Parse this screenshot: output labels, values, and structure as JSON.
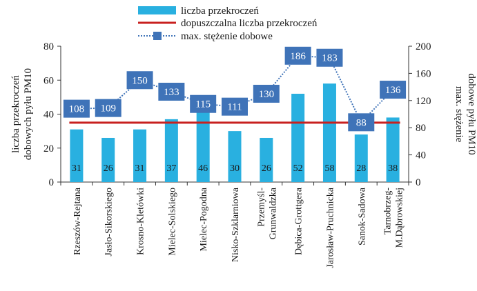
{
  "chart_data": {
    "type": "bar+line",
    "categories": [
      "Rzeszów-Rejtana",
      "Jasło-Sikorskiego",
      "Krosno-Kletówki",
      "Mielec-Solskiego",
      "Mielec-Pogodna",
      "Nisko-Szklarniowa",
      "Przemyśl-Grunwaldzka",
      "Dębica-Grottgera",
      "Jarosław-Pruchnicka",
      "Sanok-Sadowa",
      "Tarnobrzeg-M.Dąbrowskiej"
    ],
    "category_lines": [
      [
        "Rzeszów-Rejtana"
      ],
      [
        "Jasło-Sikorskiego"
      ],
      [
        "Krosno-Kletówki"
      ],
      [
        "Mielec-Solskiego"
      ],
      [
        "Mielec-Pogodna"
      ],
      [
        "Nisko-Szklarniowa"
      ],
      [
        "Przemyśl-",
        "Grunwaldzka"
      ],
      [
        "Dębica-Grottgera"
      ],
      [
        "Jarosław-Pruchnicka"
      ],
      [
        "Sanok-Sadowa"
      ],
      [
        "Tarnobrzeg-",
        "M.Dąbrowskiej"
      ]
    ],
    "series": [
      {
        "name": "liczba przekroczeń",
        "type": "bar",
        "axis": "left",
        "color": "#29b0e0",
        "values": [
          31,
          26,
          31,
          37,
          46,
          30,
          26,
          52,
          58,
          28,
          38
        ]
      },
      {
        "name": "dopuszczalna liczba przekroczeń",
        "type": "line",
        "axis": "left",
        "color": "#c8201f",
        "values": [
          35,
          35,
          35,
          35,
          35,
          35,
          35,
          35,
          35,
          35,
          35
        ]
      },
      {
        "name": "max. stężenie dobowe",
        "type": "line",
        "axis": "right",
        "color": "#3f73b8",
        "values": [
          108,
          109,
          150,
          133,
          115,
          111,
          130,
          186,
          183,
          88,
          136
        ]
      }
    ],
    "ylabel_left": [
      "liczba przekroczeń",
      "dobowych pyłu PM10"
    ],
    "ylabel_right": [
      "max. stężenie",
      "dobowe pyłu PM10"
    ],
    "ylim_left": [
      0,
      80
    ],
    "yticks_left": [
      0,
      20,
      40,
      60,
      80
    ],
    "ylim_right": [
      0,
      200
    ],
    "yticks_right": [
      0,
      40,
      80,
      120,
      160,
      200
    ],
    "legend": [
      {
        "label": "liczba przekroczeń",
        "style": "bar",
        "color": "#29b0e0"
      },
      {
        "label": "dopuszczalna liczba przekroczeń",
        "style": "line",
        "color": "#c8201f"
      },
      {
        "label": "max. stężenie dobowe",
        "style": "dotted-marker",
        "color": "#3f73b8"
      }
    ],
    "legend_position": "top-center",
    "grid": false
  }
}
